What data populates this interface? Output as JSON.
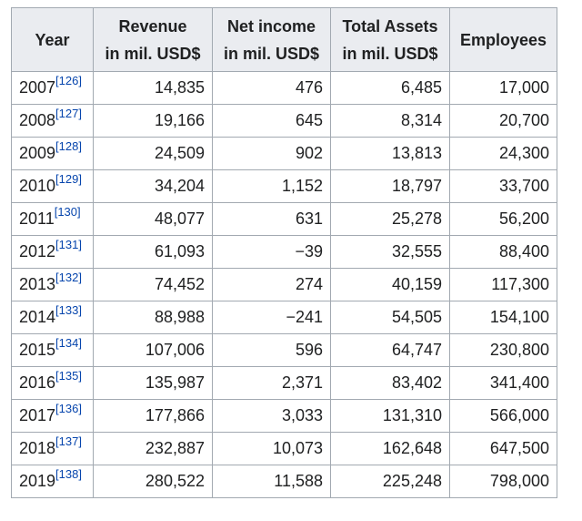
{
  "table": {
    "headers": [
      {
        "line1": "Year",
        "line2": ""
      },
      {
        "line1": "Revenue",
        "line2": "in mil. USD$"
      },
      {
        "line1": "Net income",
        "line2": "in mil. USD$"
      },
      {
        "line1": "Total Assets",
        "line2": "in mil. USD$"
      },
      {
        "line1": "Employees",
        "line2": ""
      }
    ],
    "rows": [
      {
        "year": "2007",
        "ref": "[126]",
        "revenue": "14,835",
        "net_income": "476",
        "total_assets": "6,485",
        "employees": "17,000"
      },
      {
        "year": "2008",
        "ref": "[127]",
        "revenue": "19,166",
        "net_income": "645",
        "total_assets": "8,314",
        "employees": "20,700"
      },
      {
        "year": "2009",
        "ref": "[128]",
        "revenue": "24,509",
        "net_income": "902",
        "total_assets": "13,813",
        "employees": "24,300"
      },
      {
        "year": "2010",
        "ref": "[129]",
        "revenue": "34,204",
        "net_income": "1,152",
        "total_assets": "18,797",
        "employees": "33,700"
      },
      {
        "year": "2011",
        "ref": "[130]",
        "revenue": "48,077",
        "net_income": "631",
        "total_assets": "25,278",
        "employees": "56,200"
      },
      {
        "year": "2012",
        "ref": "[131]",
        "revenue": "61,093",
        "net_income": "−39",
        "total_assets": "32,555",
        "employees": "88,400"
      },
      {
        "year": "2013",
        "ref": "[132]",
        "revenue": "74,452",
        "net_income": "274",
        "total_assets": "40,159",
        "employees": "117,300"
      },
      {
        "year": "2014",
        "ref": "[133]",
        "revenue": "88,988",
        "net_income": "−241",
        "total_assets": "54,505",
        "employees": "154,100"
      },
      {
        "year": "2015",
        "ref": "[134]",
        "revenue": "107,006",
        "net_income": "596",
        "total_assets": "64,747",
        "employees": "230,800"
      },
      {
        "year": "2016",
        "ref": "[135]",
        "revenue": "135,987",
        "net_income": "2,371",
        "total_assets": "83,402",
        "employees": "341,400"
      },
      {
        "year": "2017",
        "ref": "[136]",
        "revenue": "177,866",
        "net_income": "3,033",
        "total_assets": "131,310",
        "employees": "566,000"
      },
      {
        "year": "2018",
        "ref": "[137]",
        "revenue": "232,887",
        "net_income": "10,073",
        "total_assets": "162,648",
        "employees": "647,500"
      },
      {
        "year": "2019",
        "ref": "[138]",
        "revenue": "280,522",
        "net_income": "11,588",
        "total_assets": "225,248",
        "employees": "798,000"
      }
    ]
  }
}
